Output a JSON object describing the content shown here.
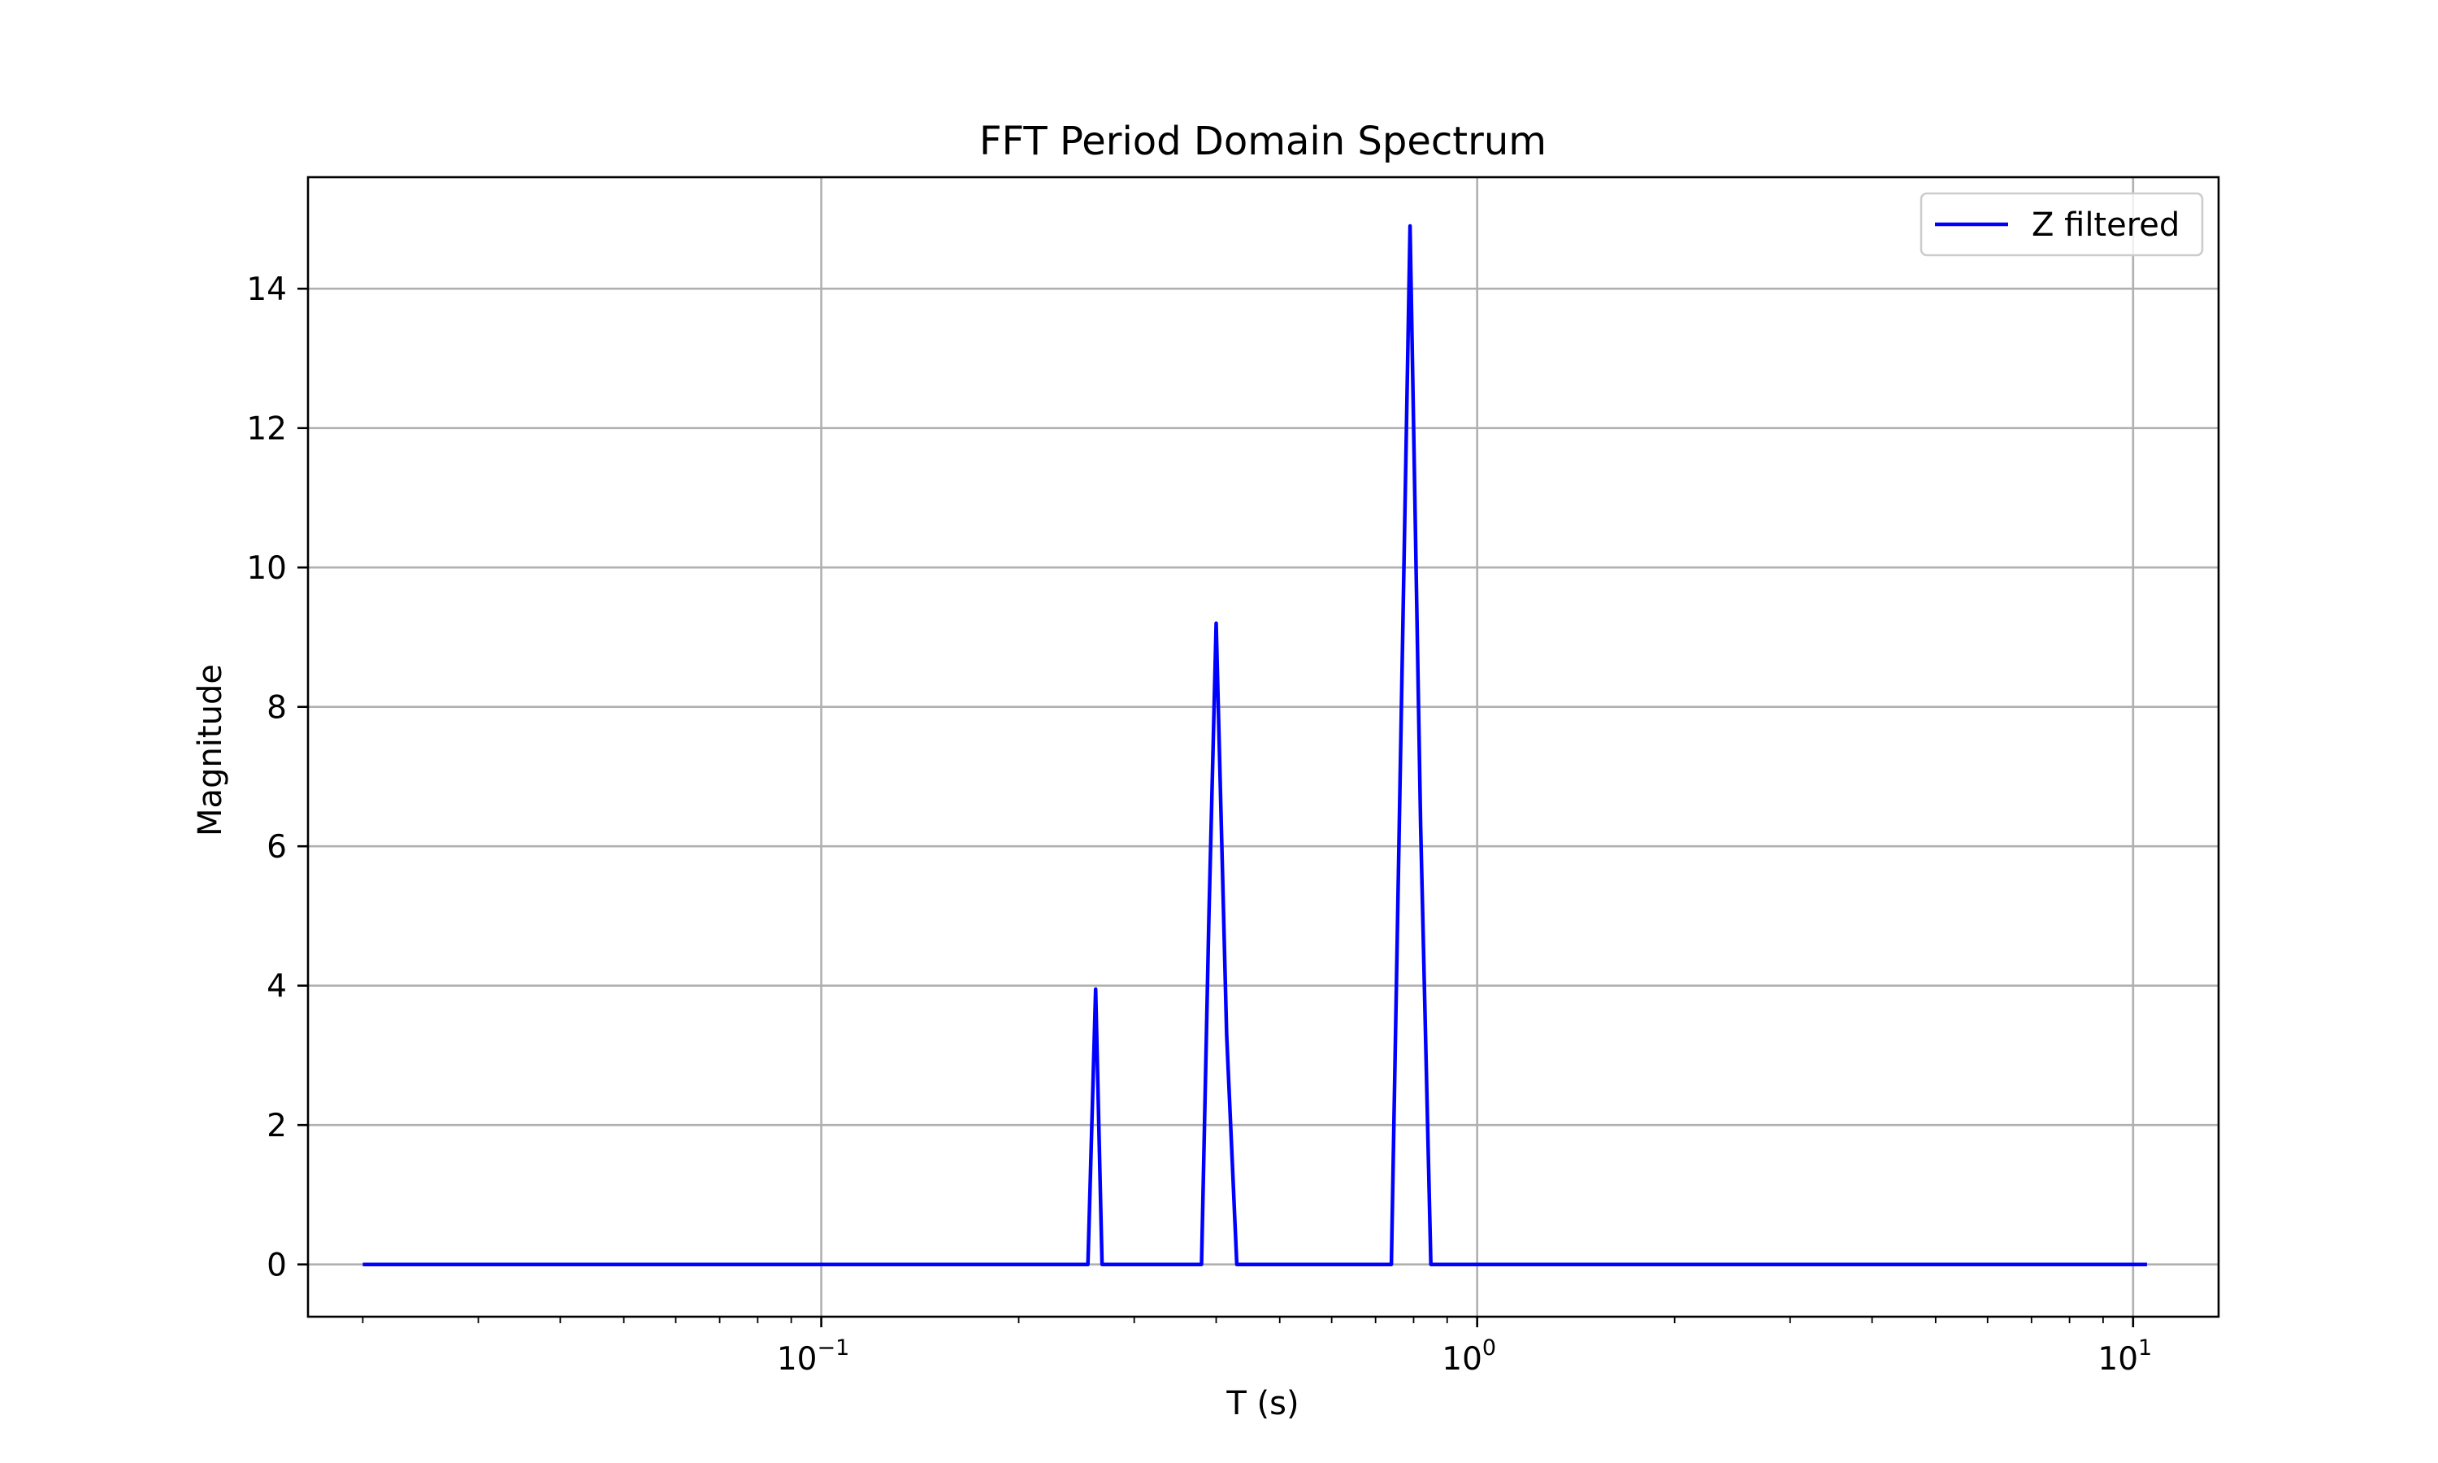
{
  "chart_data": {
    "type": "line",
    "title": "FFT Period Domain Spectrum",
    "xlabel": "T (s)",
    "ylabel": "Magnitude",
    "x_scale": "log",
    "xlim": [
      0.0165,
      13.5
    ],
    "ylim": [
      -0.75,
      15.6
    ],
    "x_ticks": [
      {
        "value": 0.1,
        "base": "10",
        "exponent": "−1"
      },
      {
        "value": 1,
        "base": "10",
        "exponent": "0"
      },
      {
        "value": 10,
        "base": "10",
        "exponent": "1"
      }
    ],
    "y_ticks": [
      {
        "value": 0,
        "label": "0"
      },
      {
        "value": 2,
        "label": "2"
      },
      {
        "value": 4,
        "label": "4"
      },
      {
        "value": 6,
        "label": "6"
      },
      {
        "value": 8,
        "label": "8"
      },
      {
        "value": 10,
        "label": "10"
      },
      {
        "value": 12,
        "label": "12"
      },
      {
        "value": 14,
        "label": "14"
      }
    ],
    "grid": true,
    "legend_position": "top-right",
    "series": [
      {
        "name": "Z filtered",
        "color": "#0000ff",
        "x": [
          0.02,
          0.255,
          0.262,
          0.268,
          0.38,
          0.39,
          0.4,
          0.415,
          0.43,
          0.74,
          0.79,
          0.82,
          0.85,
          10.5
        ],
        "y": [
          0,
          0,
          3.95,
          0,
          0,
          5.0,
          9.2,
          3.3,
          0,
          0,
          14.9,
          6.3,
          0,
          0
        ]
      }
    ]
  }
}
